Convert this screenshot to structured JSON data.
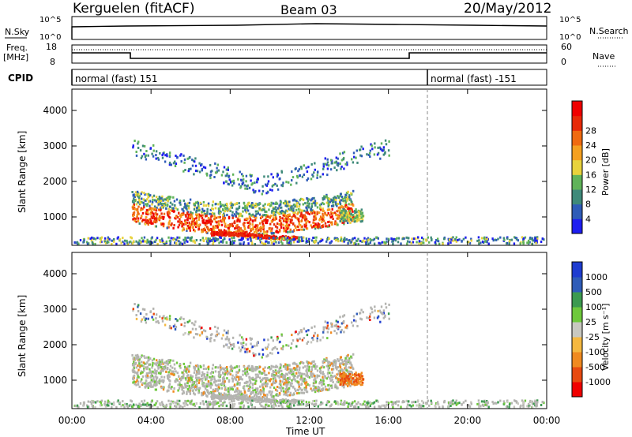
{
  "header": {
    "station": "Kerguelen (fitACF)",
    "beam": "Beam 03",
    "date": "20/May/2012"
  },
  "nsky_panel": {
    "label": "N.Sky",
    "right_label": "N.Search",
    "y_ticks": [
      "10^5",
      "10^0"
    ]
  },
  "freq_panel": {
    "label_line1": "Freq.",
    "label_line2": "[MHz]",
    "right_label": "Nave",
    "left_ticks": [
      "18",
      "8"
    ],
    "right_ticks": [
      "60",
      "0"
    ]
  },
  "cpid_panel": {
    "label": "CPID",
    "modes": [
      "normal (fast) 151",
      "normal (fast) -151"
    ]
  },
  "colors": {
    "power": [
      "#1e1ef0",
      "#2f5cb8",
      "#3f8a7a",
      "#60b35a",
      "#e8d23c",
      "#f5a020",
      "#f06a10",
      "#e82a08",
      "#f00000"
    ],
    "velocity": [
      "#f00000",
      "#e84a10",
      "#f08a20",
      "#f5b840",
      "#c8c8c0",
      "#6ec83c",
      "#3c9a50",
      "#2f5cb8",
      "#1e3cd0"
    ],
    "ground_scatter": "#b4b4b0"
  },
  "chart_data": [
    {
      "type": "heatmap",
      "name": "power",
      "ylabel": "Slant Range [km]",
      "xlabel": "Time UT",
      "x_ticks": [
        "00:00",
        "04:00",
        "08:00",
        "12:00",
        "16:00",
        "20:00",
        "00:00"
      ],
      "y_ticks": [
        "1000",
        "2000",
        "3000",
        "4000"
      ],
      "ylim_km": [
        200,
        4600
      ],
      "xlim_hours": [
        0,
        24
      ],
      "colorbar": {
        "label": "Power [dB]",
        "ticks": [
          "4",
          "8",
          "12",
          "16",
          "20",
          "24",
          "28"
        ]
      },
      "grid": false
    },
    {
      "type": "heatmap",
      "name": "velocity",
      "ylabel": "Slant Range [km]",
      "xlabel": "Time UT",
      "x_ticks": [
        "00:00",
        "04:00",
        "08:00",
        "12:00",
        "16:00",
        "20:00",
        "00:00"
      ],
      "y_ticks": [
        "1000",
        "2000",
        "3000",
        "4000"
      ],
      "ylim_km": [
        200,
        4600
      ],
      "xlim_hours": [
        0,
        24
      ],
      "colorbar": {
        "label": "Velocity [m s⁻¹]",
        "ticks": [
          "1000",
          "500",
          "100",
          "25",
          "-25",
          "-100",
          "-500",
          "-1000"
        ]
      },
      "grid": false
    }
  ]
}
